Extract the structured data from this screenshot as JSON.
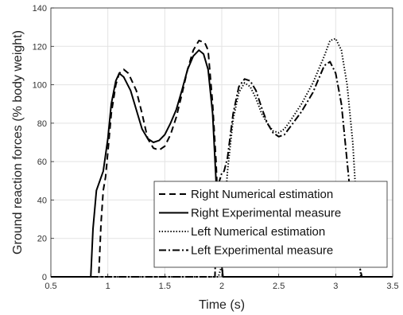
{
  "chart_data": {
    "type": "line",
    "title": "",
    "xlabel": "Time (s)",
    "ylabel": "Ground reaction forces (% body weight)",
    "xlim": [
      0.5,
      3.5
    ],
    "ylim": [
      0,
      140
    ],
    "xticks": [
      0.5,
      1,
      1.5,
      2,
      2.5,
      3,
      3.5
    ],
    "xtick_labels": [
      "0.5",
      "1",
      "1.5",
      "2",
      "2.5",
      "3",
      "3.5"
    ],
    "yticks": [
      0,
      20,
      40,
      60,
      80,
      100,
      120,
      140
    ],
    "ytick_labels": [
      "0",
      "20",
      "40",
      "60",
      "80",
      "100",
      "120",
      "140"
    ],
    "grid": true,
    "legend_position": "bottom-right",
    "series": [
      {
        "name": "Right Numerical estimation",
        "style": "dashed",
        "color": "#000000",
        "points": [
          [
            0.5,
            0
          ],
          [
            0.92,
            0
          ],
          [
            0.94,
            28
          ],
          [
            0.96,
            45
          ],
          [
            0.98,
            52
          ],
          [
            1.0,
            65
          ],
          [
            1.03,
            85
          ],
          [
            1.07,
            100
          ],
          [
            1.1,
            106
          ],
          [
            1.14,
            108
          ],
          [
            1.18,
            106
          ],
          [
            1.25,
            97
          ],
          [
            1.3,
            85
          ],
          [
            1.35,
            72
          ],
          [
            1.4,
            67
          ],
          [
            1.45,
            66
          ],
          [
            1.5,
            68
          ],
          [
            1.55,
            74
          ],
          [
            1.6,
            83
          ],
          [
            1.65,
            95
          ],
          [
            1.7,
            108
          ],
          [
            1.75,
            118
          ],
          [
            1.8,
            123
          ],
          [
            1.85,
            122
          ],
          [
            1.88,
            118
          ],
          [
            1.92,
            90
          ],
          [
            1.95,
            60
          ],
          [
            1.97,
            30
          ],
          [
            2.0,
            8
          ],
          [
            2.01,
            0
          ],
          [
            3.5,
            0
          ]
        ]
      },
      {
        "name": "Right Experimental measure",
        "style": "solid",
        "color": "#000000",
        "points": [
          [
            0.5,
            0
          ],
          [
            0.85,
            0
          ],
          [
            0.87,
            25
          ],
          [
            0.9,
            45
          ],
          [
            0.93,
            50
          ],
          [
            0.96,
            55
          ],
          [
            1.0,
            72
          ],
          [
            1.03,
            90
          ],
          [
            1.07,
            102
          ],
          [
            1.1,
            106
          ],
          [
            1.14,
            104
          ],
          [
            1.2,
            97
          ],
          [
            1.25,
            87
          ],
          [
            1.3,
            77
          ],
          [
            1.35,
            72
          ],
          [
            1.4,
            70
          ],
          [
            1.45,
            71
          ],
          [
            1.5,
            74
          ],
          [
            1.55,
            80
          ],
          [
            1.6,
            87
          ],
          [
            1.65,
            97
          ],
          [
            1.7,
            108
          ],
          [
            1.75,
            115
          ],
          [
            1.8,
            118
          ],
          [
            1.84,
            116
          ],
          [
            1.88,
            108
          ],
          [
            1.92,
            85
          ],
          [
            1.95,
            50
          ],
          [
            1.98,
            20
          ],
          [
            2.0,
            6
          ],
          [
            2.01,
            0
          ],
          [
            3.5,
            0
          ]
        ]
      },
      {
        "name": "Left Numerical estimation",
        "style": "dotted",
        "color": "#000000",
        "points": [
          [
            0.5,
            0
          ],
          [
            1.97,
            0
          ],
          [
            1.99,
            4
          ],
          [
            2.02,
            30
          ],
          [
            2.05,
            55
          ],
          [
            2.1,
            82
          ],
          [
            2.15,
            96
          ],
          [
            2.2,
            101
          ],
          [
            2.25,
            99
          ],
          [
            2.3,
            93
          ],
          [
            2.35,
            85
          ],
          [
            2.4,
            80
          ],
          [
            2.45,
            76
          ],
          [
            2.5,
            75
          ],
          [
            2.55,
            77
          ],
          [
            2.6,
            81
          ],
          [
            2.7,
            90
          ],
          [
            2.8,
            101
          ],
          [
            2.9,
            115
          ],
          [
            2.95,
            123
          ],
          [
            3.0,
            124
          ],
          [
            3.05,
            118
          ],
          [
            3.1,
            100
          ],
          [
            3.15,
            70
          ],
          [
            3.18,
            40
          ],
          [
            3.2,
            15
          ],
          [
            3.22,
            0
          ],
          [
            3.5,
            0
          ]
        ]
      },
      {
        "name": "Left Experimental measure",
        "style": "dashdot",
        "color": "#000000",
        "points": [
          [
            0.5,
            0
          ],
          [
            1.94,
            0
          ],
          [
            1.96,
            42
          ],
          [
            1.98,
            50
          ],
          [
            2.0,
            54
          ],
          [
            2.02,
            55
          ],
          [
            2.05,
            62
          ],
          [
            2.1,
            85
          ],
          [
            2.15,
            99
          ],
          [
            2.2,
            103
          ],
          [
            2.25,
            102
          ],
          [
            2.3,
            97
          ],
          [
            2.35,
            88
          ],
          [
            2.4,
            80
          ],
          [
            2.45,
            75
          ],
          [
            2.5,
            73
          ],
          [
            2.55,
            74
          ],
          [
            2.6,
            78
          ],
          [
            2.7,
            86
          ],
          [
            2.8,
            96
          ],
          [
            2.85,
            103
          ],
          [
            2.9,
            110
          ],
          [
            2.95,
            112
          ],
          [
            3.0,
            106
          ],
          [
            3.05,
            90
          ],
          [
            3.1,
            60
          ],
          [
            3.15,
            30
          ],
          [
            3.2,
            8
          ],
          [
            3.23,
            0
          ],
          [
            3.5,
            0
          ]
        ]
      }
    ]
  }
}
